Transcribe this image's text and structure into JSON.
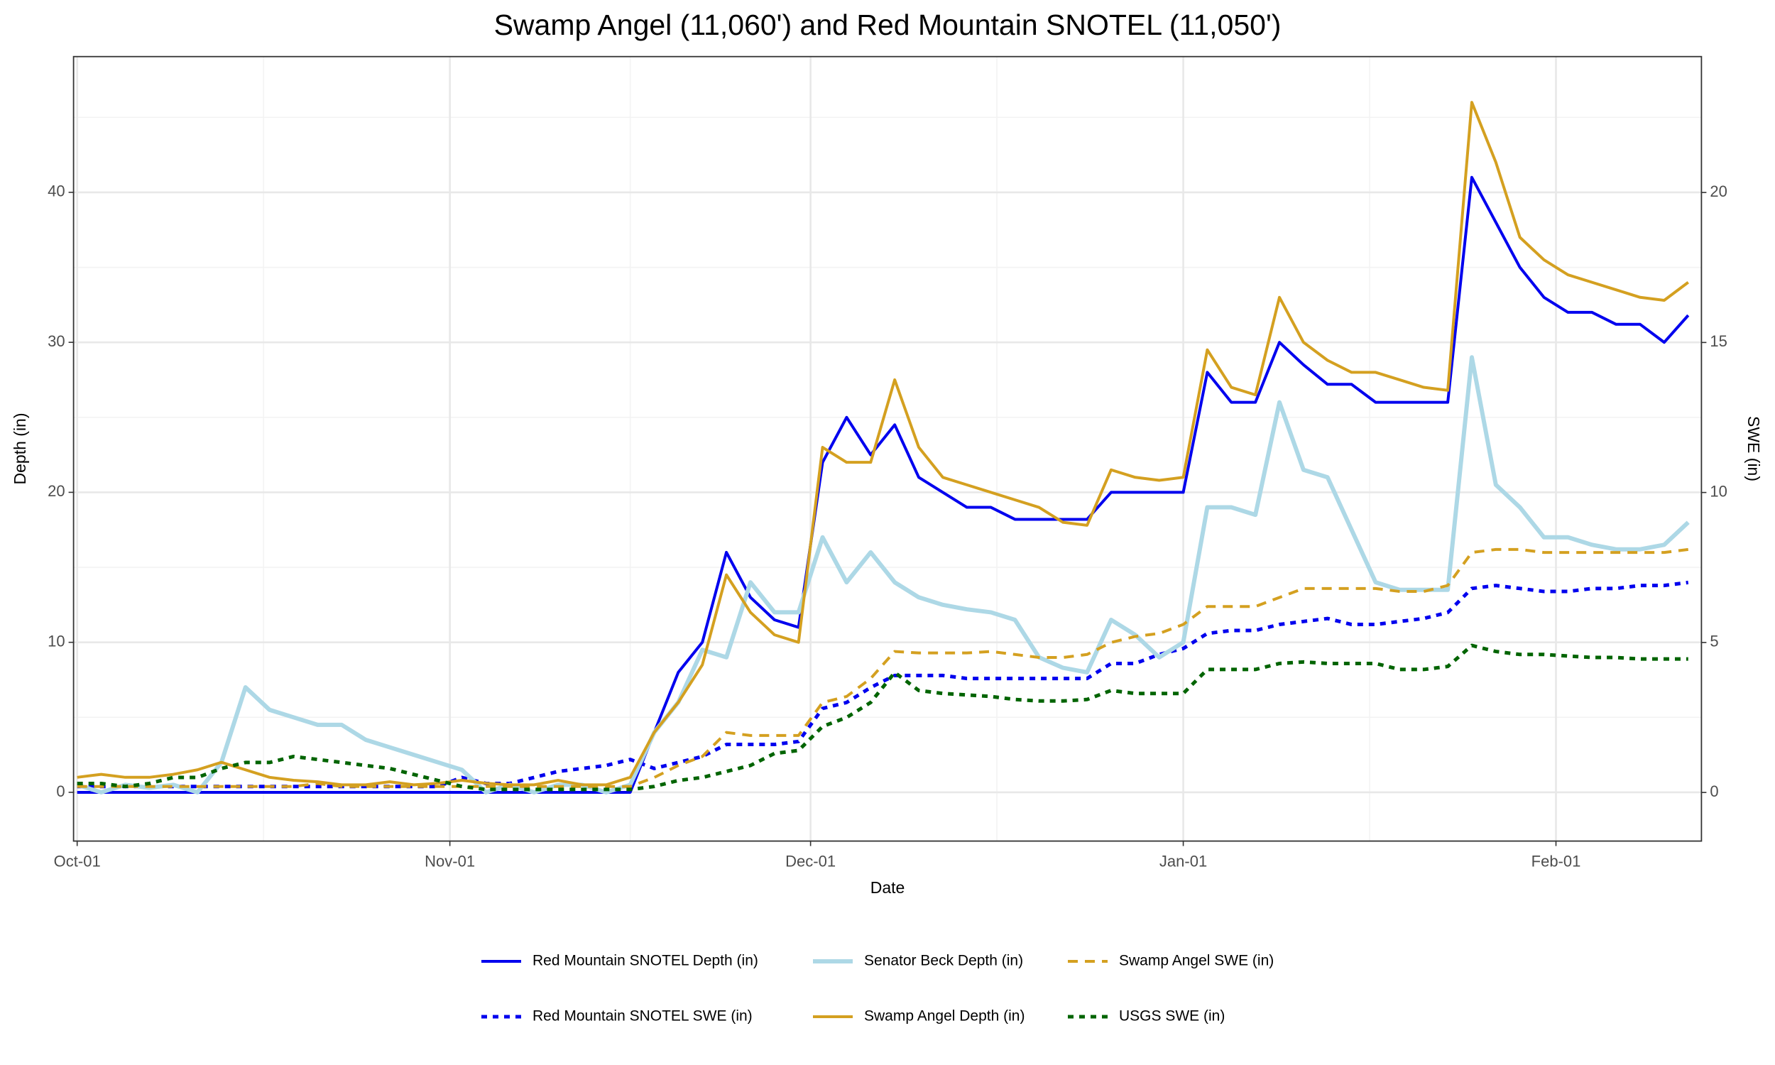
{
  "chart_data": {
    "type": "line",
    "title": "Swamp Angel (11,060') and Red Mountain SNOTEL (11,050')",
    "xlabel": "Date",
    "ylabel": "Depth (in)",
    "y2label": "SWE (in)",
    "grid": true,
    "legend": "bottom",
    "xlim": [
      -0.3,
      135.1
    ],
    "xticks": [
      {
        "value": 0,
        "label": "Oct-01"
      },
      {
        "value": 31,
        "label": "Nov-01"
      },
      {
        "value": 61,
        "label": "Dec-01"
      },
      {
        "value": 92,
        "label": "Jan-01"
      },
      {
        "value": 123,
        "label": "Feb-01"
      }
    ],
    "xminorticks": [
      15.5,
      46,
      76.5,
      107.5
    ],
    "ylim": [
      -3.25,
      49.05
    ],
    "yticks": [
      0,
      10,
      20,
      30,
      40
    ],
    "yminorticks": [
      5,
      15,
      25,
      35,
      45
    ],
    "y2lim": [
      -1.62,
      24.53
    ],
    "y2ticks": [
      0,
      5,
      10,
      15,
      20
    ],
    "x": [
      0,
      2,
      4,
      6,
      8,
      10,
      12,
      14,
      16,
      18,
      20,
      22,
      24,
      26,
      28,
      30,
      32,
      34,
      36,
      38,
      40,
      42,
      44,
      46,
      48,
      50,
      52,
      54,
      56,
      58,
      60,
      62,
      64,
      66,
      68,
      70,
      72,
      74,
      76,
      78,
      80,
      82,
      84,
      86,
      88,
      90,
      92,
      94,
      96,
      98,
      100,
      102,
      104,
      106,
      108,
      110,
      112,
      114,
      116,
      118,
      120,
      122,
      124,
      126,
      128,
      130,
      132,
      134
    ],
    "series": [
      {
        "name": "Red Mountain SNOTEL Depth (in)",
        "color": "#0000ee",
        "dash": "solid",
        "width": 4,
        "axis": "y",
        "values": [
          0,
          0,
          0,
          0,
          0,
          0,
          0,
          0,
          0,
          0,
          0,
          0,
          0,
          0,
          0,
          0,
          0,
          0,
          0,
          0,
          0,
          0,
          0,
          0,
          4,
          8,
          10,
          16,
          13,
          11.5,
          11,
          22,
          25,
          22.5,
          24.5,
          21,
          20,
          19,
          19,
          18.2,
          18.2,
          18.2,
          18.2,
          20,
          20,
          20,
          20,
          28,
          26,
          26,
          30,
          28.5,
          27.2,
          27.2,
          26,
          26,
          26,
          26,
          41,
          38,
          35,
          33,
          32,
          32,
          31.2,
          31.2,
          30,
          31.8
        ]
      },
      {
        "name": "Red Mountain SNOTEL SWE (in)",
        "color": "#0000ee",
        "dash": "dotted",
        "width": 5,
        "axis": "y2",
        "values": [
          0.2,
          0.2,
          0.2,
          0.2,
          0.2,
          0.2,
          0.2,
          0.2,
          0.2,
          0.2,
          0.2,
          0.2,
          0.2,
          0.2,
          0.2,
          0.2,
          0.5,
          0.3,
          0.3,
          0.5,
          0.7,
          0.8,
          0.9,
          1.1,
          0.8,
          1.0,
          1.2,
          1.6,
          1.6,
          1.6,
          1.7,
          2.8,
          3.0,
          3.5,
          3.9,
          3.9,
          3.9,
          3.8,
          3.8,
          3.8,
          3.8,
          3.8,
          3.8,
          4.3,
          4.3,
          4.6,
          4.8,
          5.3,
          5.4,
          5.4,
          5.6,
          5.7,
          5.8,
          5.6,
          5.6,
          5.7,
          5.8,
          6.0,
          6.8,
          6.9,
          6.8,
          6.7,
          6.7,
          6.8,
          6.8,
          6.9,
          6.9,
          7.0
        ]
      },
      {
        "name": "Senator Beck Depth (in)",
        "color": "#add8e6",
        "dash": "solid",
        "width": 6,
        "axis": "y",
        "values": [
          0.5,
          0,
          0.5,
          0.3,
          0.5,
          0,
          2,
          7,
          5.5,
          5,
          4.5,
          4.5,
          3.5,
          3,
          2.5,
          2,
          1.5,
          0,
          0.5,
          0,
          0.5,
          0.5,
          0,
          0.5,
          4,
          6,
          9.5,
          9,
          14,
          12,
          12,
          17,
          14,
          16,
          14,
          13,
          12.5,
          12.2,
          12,
          11.5,
          9,
          8.3,
          8,
          11.5,
          10.5,
          9,
          10,
          19,
          19,
          18.5,
          26,
          21.5,
          21,
          17.5,
          14,
          13.5,
          13.5,
          13.5,
          29,
          20.5,
          19,
          17,
          17,
          16.5,
          16.2,
          16.2,
          16.5,
          18
        ]
      },
      {
        "name": "Swamp Angel Depth (in)",
        "color": "#d4a020",
        "dash": "solid",
        "width": 4,
        "axis": "y",
        "values": [
          1,
          1.2,
          1,
          1,
          1.2,
          1.5,
          2,
          1.5,
          1,
          0.8,
          0.7,
          0.5,
          0.5,
          0.7,
          0.5,
          0.6,
          0.8,
          0.6,
          0.5,
          0.5,
          0.8,
          0.5,
          0.5,
          1,
          4,
          6,
          8.5,
          14.5,
          12,
          10.5,
          10,
          23,
          22,
          22,
          27.5,
          23,
          21,
          20.5,
          20,
          19.5,
          19,
          18,
          17.8,
          21.5,
          21,
          20.8,
          21,
          29.5,
          27,
          26.5,
          33,
          30,
          28.8,
          28,
          28,
          27.5,
          27,
          26.8,
          46,
          42,
          37,
          35.5,
          34.5,
          34,
          33.5,
          33,
          32.8,
          34
        ]
      },
      {
        "name": "Swamp Angel SWE (in)",
        "color": "#d4a020",
        "dash": "dashed",
        "width": 4,
        "axis": "y2",
        "values": [
          0.2,
          0.2,
          0.2,
          0.2,
          0.2,
          0.2,
          0.2,
          0.2,
          0.2,
          0.2,
          0.3,
          0.2,
          0.2,
          0.2,
          0.2,
          0.2,
          0.2,
          0.2,
          0.2,
          0.2,
          0.2,
          0.2,
          0.2,
          0.2,
          0.5,
          0.9,
          1.2,
          2.0,
          1.9,
          1.9,
          1.9,
          3.0,
          3.2,
          3.8,
          4.7,
          4.65,
          4.65,
          4.65,
          4.7,
          4.6,
          4.5,
          4.5,
          4.6,
          5.0,
          5.2,
          5.3,
          5.6,
          6.2,
          6.2,
          6.2,
          6.5,
          6.8,
          6.8,
          6.8,
          6.8,
          6.7,
          6.7,
          6.9,
          8.0,
          8.1,
          8.1,
          8.0,
          8.0,
          8.0,
          8.0,
          8.0,
          8.0,
          8.1
        ]
      },
      {
        "name": "USGS SWE (in)",
        "color": "#006400",
        "dash": "dotted",
        "width": 5,
        "axis": "y2",
        "values": [
          0.3,
          0.3,
          0.2,
          0.3,
          0.5,
          0.5,
          0.8,
          1.0,
          1.0,
          1.2,
          1.1,
          1.0,
          0.9,
          0.8,
          0.6,
          0.4,
          0.2,
          0.1,
          0.1,
          0.1,
          0.1,
          0.1,
          0.1,
          0.1,
          0.2,
          0.4,
          0.5,
          0.7,
          0.9,
          1.3,
          1.4,
          2.2,
          2.5,
          3.0,
          4.0,
          3.4,
          3.3,
          3.25,
          3.2,
          3.1,
          3.05,
          3.05,
          3.1,
          3.4,
          3.3,
          3.3,
          3.3,
          4.1,
          4.1,
          4.1,
          4.3,
          4.35,
          4.3,
          4.3,
          4.3,
          4.1,
          4.1,
          4.2,
          4.9,
          4.7,
          4.6,
          4.6,
          4.55,
          4.5,
          4.5,
          4.45,
          4.45,
          4.45
        ]
      }
    ]
  }
}
